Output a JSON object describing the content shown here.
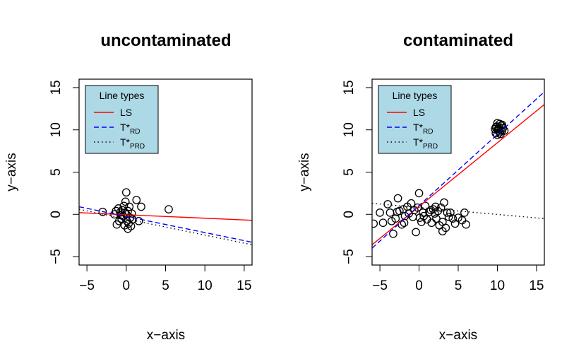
{
  "chart_data": [
    {
      "type": "scatter",
      "title": "uncontaminated",
      "xlabel": "x−axis",
      "ylabel": "y−axis",
      "xlim": [
        -6,
        16
      ],
      "ylim": [
        -6,
        16
      ],
      "xticks": [
        -5,
        0,
        5,
        10,
        15
      ],
      "yticks": [
        -5,
        0,
        5,
        10,
        15
      ],
      "x_tick_labels": [
        "−5",
        "0",
        "5",
        "10",
        "15"
      ],
      "y_tick_labels": [
        "−5",
        "0",
        "5",
        "10",
        "15"
      ],
      "legend": {
        "title": "Line types",
        "position": "top-left",
        "background": "#add8e6",
        "entries": [
          {
            "label": "LS",
            "subscript": "",
            "color": "#ff0000",
            "dash": "solid"
          },
          {
            "label": "T*",
            "subscript": "RD",
            "color": "#0000ff",
            "dash": "dashed"
          },
          {
            "label": "T*",
            "subscript": "PRD",
            "color": "#000000",
            "dash": "dotted"
          }
        ]
      },
      "points": [
        [
          -3.0,
          0.3
        ],
        [
          -1.2,
          -1.2
        ],
        [
          -1.0,
          0.7
        ],
        [
          -0.8,
          0.2
        ],
        [
          -0.6,
          -0.5
        ],
        [
          -0.5,
          0.5
        ],
        [
          -0.3,
          1.0
        ],
        [
          -0.2,
          0.2
        ],
        [
          -0.1,
          1.5
        ],
        [
          0.0,
          0.0
        ],
        [
          0.0,
          2.6
        ],
        [
          0.1,
          -0.8
        ],
        [
          0.2,
          0.4
        ],
        [
          -0.4,
          -0.2
        ],
        [
          0.3,
          -1.1
        ],
        [
          0.5,
          -0.4
        ],
        [
          0.6,
          -1.4
        ],
        [
          0.7,
          0.1
        ],
        [
          0.2,
          -1.7
        ],
        [
          -1.3,
          0.4
        ],
        [
          -0.9,
          -0.8
        ],
        [
          1.3,
          1.7
        ],
        [
          1.6,
          -0.8
        ],
        [
          1.9,
          0.9
        ],
        [
          5.4,
          0.6
        ],
        [
          -0.7,
          -0.1
        ],
        [
          0.4,
          0.9
        ],
        [
          -0.2,
          -1.3
        ],
        [
          0.8,
          -0.6
        ],
        [
          -1.5,
          0.0
        ]
      ],
      "lines": [
        {
          "legend_index": 0,
          "x": [
            -6,
            16
          ],
          "y": [
            0.2,
            -0.7
          ]
        },
        {
          "legend_index": 1,
          "x": [
            -6,
            16
          ],
          "y": [
            0.9,
            -3.3
          ]
        },
        {
          "legend_index": 2,
          "x": [
            -6,
            16
          ],
          "y": [
            0.6,
            -3.6
          ]
        }
      ]
    },
    {
      "type": "scatter",
      "title": "contaminated",
      "xlabel": "x−axis",
      "ylabel": "y−axis",
      "xlim": [
        -6,
        16
      ],
      "ylim": [
        -6,
        16
      ],
      "xticks": [
        -5,
        0,
        5,
        10,
        15
      ],
      "yticks": [
        -5,
        0,
        5,
        10,
        15
      ],
      "x_tick_labels": [
        "−5",
        "0",
        "5",
        "10",
        "15"
      ],
      "y_tick_labels": [
        "−5",
        "0",
        "5",
        "10",
        "15"
      ],
      "legend": {
        "title": "Line types",
        "position": "top-left",
        "background": "#add8e6",
        "entries": [
          {
            "label": "LS",
            "subscript": "",
            "color": "#ff0000",
            "dash": "solid"
          },
          {
            "label": "T*",
            "subscript": "RD",
            "color": "#0000ff",
            "dash": "dashed"
          },
          {
            "label": "T*",
            "subscript": "PRD",
            "color": "#000000",
            "dash": "dotted"
          }
        ]
      },
      "points": [
        [
          -5.8,
          -1.1
        ],
        [
          -5.0,
          0.2
        ],
        [
          -4.6,
          -1.0
        ],
        [
          -4.0,
          1.2
        ],
        [
          -3.7,
          0.2
        ],
        [
          -3.3,
          -2.3
        ],
        [
          -3.0,
          -0.5
        ],
        [
          -2.7,
          1.9
        ],
        [
          -2.5,
          0.4
        ],
        [
          -2.2,
          -1.2
        ],
        [
          -2.0,
          0.6
        ],
        [
          -1.8,
          -0.2
        ],
        [
          -1.5,
          0.9
        ],
        [
          -1.3,
          0.1
        ],
        [
          -1.0,
          1.3
        ],
        [
          -0.8,
          -0.3
        ],
        [
          -0.6,
          0.5
        ],
        [
          -0.4,
          -2.1
        ],
        [
          -0.2,
          0.8
        ],
        [
          0.0,
          2.5
        ],
        [
          0.1,
          -0.4
        ],
        [
          0.3,
          -0.9
        ],
        [
          0.5,
          0.2
        ],
        [
          0.8,
          1.0
        ],
        [
          1.0,
          -0.6
        ],
        [
          1.3,
          0.3
        ],
        [
          1.6,
          -1.0
        ],
        [
          1.8,
          0.6
        ],
        [
          2.0,
          0.1
        ],
        [
          2.2,
          -0.5
        ],
        [
          2.4,
          0.4
        ],
        [
          2.6,
          -1.3
        ],
        [
          2.8,
          0.8
        ],
        [
          3.0,
          -0.9
        ],
        [
          3.2,
          1.4
        ],
        [
          3.4,
          -1.6
        ],
        [
          3.6,
          0.2
        ],
        [
          3.8,
          -0.3
        ],
        [
          4.0,
          0.2
        ],
        [
          4.3,
          -0.5
        ],
        [
          4.6,
          -1.1
        ],
        [
          5.0,
          -0.4
        ],
        [
          5.5,
          -0.7
        ],
        [
          5.8,
          0.2
        ],
        [
          6.0,
          -1.2
        ],
        [
          -3.5,
          -0.8
        ],
        [
          -1.9,
          -1.0
        ],
        [
          0.6,
          -0.2
        ],
        [
          2.1,
          0.9
        ],
        [
          3.0,
          -2.0
        ],
        [
          -2.8,
          0.3
        ],
        [
          1.5,
          0.5
        ],
        [
          9.7,
          10.1
        ],
        [
          9.8,
          9.6
        ],
        [
          9.9,
          10.4
        ],
        [
          10.0,
          10.8
        ],
        [
          10.1,
          9.9
        ],
        [
          10.2,
          10.3
        ],
        [
          10.3,
          9.7
        ],
        [
          10.4,
          10.0
        ],
        [
          10.5,
          10.5
        ],
        [
          10.6,
          9.9
        ],
        [
          10.7,
          10.2
        ],
        [
          10.9,
          9.9
        ],
        [
          10.0,
          9.4
        ],
        [
          10.3,
          10.7
        ],
        [
          9.8,
          10.3
        ],
        [
          10.6,
          10.6
        ],
        [
          10.1,
          10.1
        ],
        [
          10.4,
          9.5
        ]
      ],
      "lines": [
        {
          "legend_index": 0,
          "x": [
            -6,
            16
          ],
          "y": [
            -3.6,
            13.0
          ]
        },
        {
          "legend_index": 1,
          "x": [
            -6,
            16
          ],
          "y": [
            -4.0,
            14.5
          ]
        },
        {
          "legend_index": 2,
          "x": [
            -6,
            16
          ],
          "y": [
            1.3,
            -0.5
          ]
        }
      ]
    }
  ]
}
